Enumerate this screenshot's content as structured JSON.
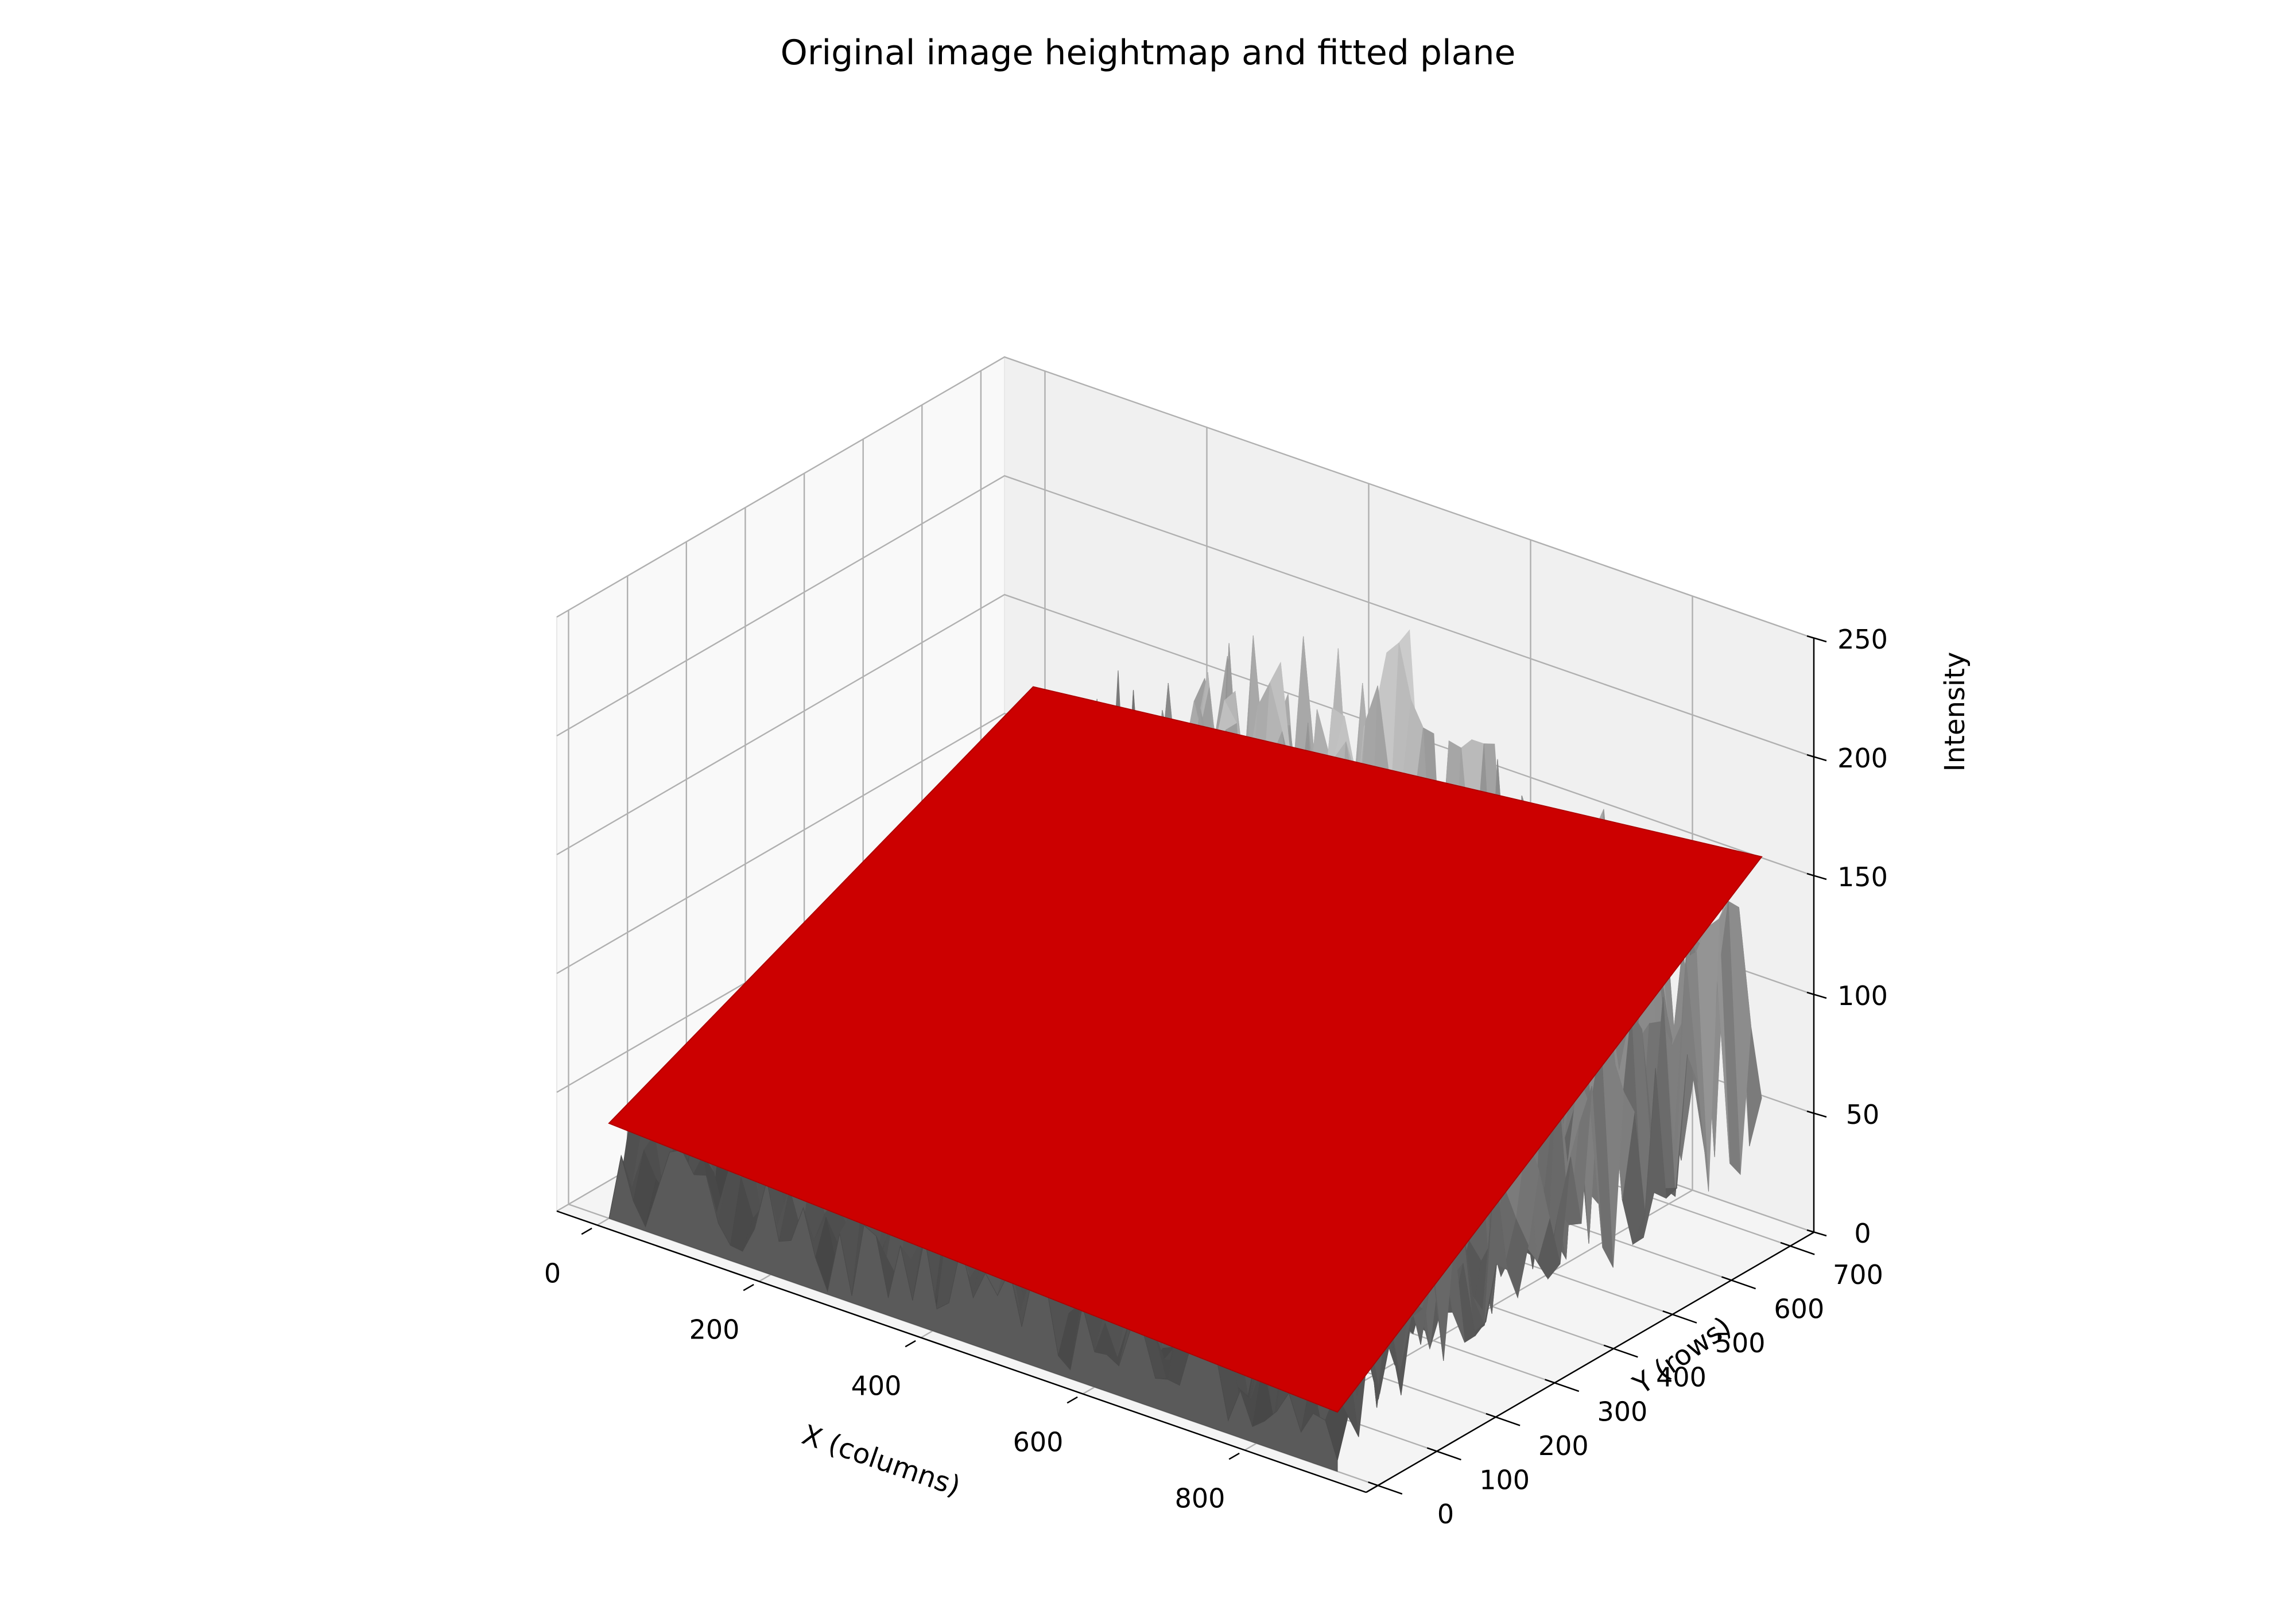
{
  "chart_data": {
    "type": "surface3d",
    "title": "Original image heightmap and fitted plane",
    "xlabel": "X (columns)",
    "ylabel": "Y (rows)",
    "zlabel": "Intensity",
    "xlim": [
      -50,
      950
    ],
    "ylim": [
      -20,
      740
    ],
    "zlim": [
      0,
      250
    ],
    "x_ticks": [
      0,
      200,
      400,
      600,
      800
    ],
    "y_ticks": [
      0,
      100,
      200,
      300,
      400,
      500,
      600,
      700
    ],
    "z_ticks": [
      0,
      50,
      100,
      150,
      200,
      250
    ],
    "grid": true,
    "series": [
      {
        "kind": "heightmap",
        "colormap": "gray",
        "x_range": [
          0,
          900
        ],
        "y_range": [
          0,
          720
        ],
        "z_range_approx": [
          0,
          230
        ]
      },
      {
        "kind": "fitted_plane",
        "color": "#cc0000",
        "corners": [
          {
            "x": 0,
            "y": 0,
            "z": 40
          },
          {
            "x": 900,
            "y": 0,
            "z": 25
          },
          {
            "x": 900,
            "y": 720,
            "z": 155
          },
          {
            "x": 0,
            "y": 720,
            "z": 120
          }
        ]
      }
    ]
  }
}
